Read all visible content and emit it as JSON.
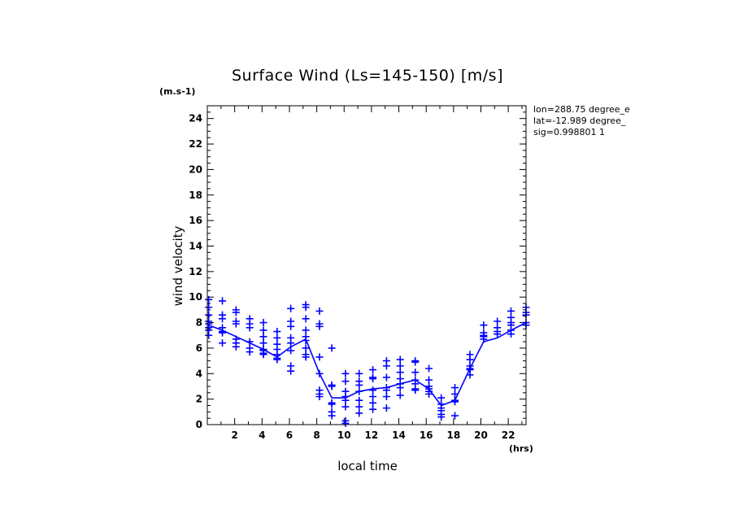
{
  "chart_data": {
    "type": "scatter",
    "title": "Surface Wind  (Ls=145-150) [m/s]",
    "xlabel": "local time",
    "ylabel": "wind velocity",
    "x_unit": "(hrs)",
    "y_unit": "(m.s-1)",
    "xlim": [
      0,
      23.3
    ],
    "ylim": [
      0,
      25
    ],
    "x_ticks": [
      2,
      4,
      6,
      8,
      10,
      12,
      14,
      16,
      18,
      20,
      22
    ],
    "y_ticks": [
      0,
      2,
      4,
      6,
      8,
      10,
      12,
      14,
      16,
      18,
      20,
      22,
      24
    ],
    "grid": false,
    "color": "#0000ff",
    "annotations": [
      "lon=288.75 degree_e",
      "lat=-12.989 degree_",
      "sig=0.998801 1"
    ],
    "series": [
      {
        "type": "line",
        "x": [
          0.1,
          1.1,
          2.1,
          3.1,
          4.1,
          5.1,
          6.1,
          7.2,
          8.2,
          9.1,
          10.1,
          11.1,
          12.1,
          13.1,
          14.1,
          15.2,
          16.2,
          17.1,
          18.1,
          19.2,
          20.2,
          21.2,
          22.2,
          23.3
        ],
        "y": [
          7.8,
          7.4,
          6.9,
          6.4,
          5.9,
          5.3,
          6.1,
          6.7,
          4.0,
          2.1,
          2.1,
          2.6,
          2.8,
          2.9,
          3.2,
          3.5,
          2.8,
          1.5,
          1.9,
          4.4,
          6.5,
          6.8,
          7.4,
          8.0
        ]
      },
      {
        "type": "scatter",
        "marker": "+",
        "x": [
          0.1,
          0.1,
          0.1,
          0.1,
          0.1,
          0.1,
          0.1,
          0.1,
          1.1,
          1.1,
          1.1,
          1.1,
          1.1,
          1.1,
          1.1,
          2.1,
          2.1,
          2.1,
          2.1,
          2.1,
          2.1,
          2.1,
          3.1,
          3.1,
          3.1,
          3.1,
          3.1,
          3.1,
          4.1,
          4.1,
          4.1,
          4.1,
          4.1,
          4.1,
          4.1,
          4.1,
          5.1,
          5.1,
          5.1,
          5.1,
          5.1,
          5.1,
          5.1,
          6.1,
          6.1,
          6.1,
          6.1,
          6.1,
          6.1,
          6.1,
          6.1,
          7.2,
          7.2,
          7.2,
          7.2,
          7.2,
          7.2,
          7.2,
          7.2,
          7.2,
          8.2,
          8.2,
          8.2,
          8.2,
          8.2,
          8.2,
          8.2,
          8.2,
          9.1,
          9.1,
          9.1,
          9.1,
          9.1,
          9.1,
          9.1,
          10.1,
          10.1,
          10.1,
          10.1,
          10.1,
          10.1,
          10.1,
          10.1,
          11.1,
          11.1,
          11.1,
          11.1,
          11.1,
          11.1,
          11.1,
          12.1,
          12.1,
          12.1,
          12.1,
          12.1,
          12.1,
          12.1,
          13.1,
          13.1,
          13.1,
          13.1,
          13.1,
          13.1,
          13.1,
          14.1,
          14.1,
          14.1,
          14.1,
          14.1,
          14.1,
          14.1,
          15.2,
          15.2,
          15.2,
          15.2,
          15.2,
          15.2,
          15.2,
          16.2,
          16.2,
          16.2,
          16.2,
          16.2,
          16.2,
          17.1,
          17.1,
          17.1,
          17.1,
          17.1,
          17.1,
          18.1,
          18.1,
          18.1,
          18.1,
          18.1,
          19.2,
          19.2,
          19.2,
          19.2,
          19.2,
          19.2,
          20.2,
          20.2,
          20.2,
          20.2,
          20.2,
          21.2,
          21.2,
          21.2,
          21.2,
          22.2,
          22.2,
          22.2,
          22.2,
          22.2,
          22.2,
          23.3,
          23.3,
          23.3,
          23.3,
          23.3
        ],
        "y": [
          9.8,
          9.2,
          8.6,
          8.1,
          7.9,
          7.6,
          7.4,
          7.0,
          9.7,
          8.6,
          8.3,
          7.6,
          7.3,
          7.2,
          6.4,
          9.0,
          8.8,
          8.1,
          7.9,
          6.7,
          6.4,
          6.1,
          8.3,
          7.9,
          7.6,
          6.5,
          6.0,
          5.7,
          8.0,
          7.4,
          6.9,
          6.4,
          5.9,
          5.6,
          5.5,
          5.8,
          7.3,
          6.8,
          6.3,
          5.9,
          5.5,
          5.2,
          5.1,
          9.1,
          8.1,
          7.7,
          6.8,
          6.4,
          5.8,
          4.6,
          4.2,
          9.4,
          9.2,
          8.3,
          7.4,
          6.9,
          6.6,
          6.0,
          5.5,
          5.3,
          8.9,
          7.9,
          7.7,
          5.3,
          4.0,
          2.7,
          2.4,
          2.2,
          6.0,
          3.1,
          3.0,
          1.7,
          1.6,
          1.0,
          0.7,
          4.0,
          3.4,
          2.6,
          2.2,
          1.9,
          1.4,
          0.3,
          0.1,
          4.0,
          3.4,
          3.1,
          2.6,
          1.9,
          1.4,
          0.9,
          4.3,
          3.7,
          3.6,
          2.7,
          2.2,
          1.7,
          1.2,
          5.0,
          4.6,
          3.7,
          2.9,
          2.7,
          2.2,
          1.3,
          5.1,
          4.6,
          4.1,
          3.6,
          3.2,
          2.9,
          2.3,
          5.0,
          4.9,
          4.1,
          3.5,
          3.2,
          2.8,
          2.7,
          4.4,
          3.5,
          3.0,
          2.8,
          2.6,
          2.4,
          2.1,
          1.6,
          1.3,
          1.1,
          0.8,
          0.6,
          2.9,
          2.4,
          1.9,
          1.8,
          0.7,
          5.5,
          5.1,
          4.6,
          4.4,
          4.3,
          3.9,
          7.8,
          7.2,
          7.0,
          6.9,
          6.7,
          8.1,
          7.6,
          7.3,
          7.1,
          8.9,
          8.4,
          8.0,
          7.8,
          7.4,
          7.1,
          9.2,
          8.8,
          8.6,
          8.0,
          7.8
        ]
      }
    ]
  }
}
